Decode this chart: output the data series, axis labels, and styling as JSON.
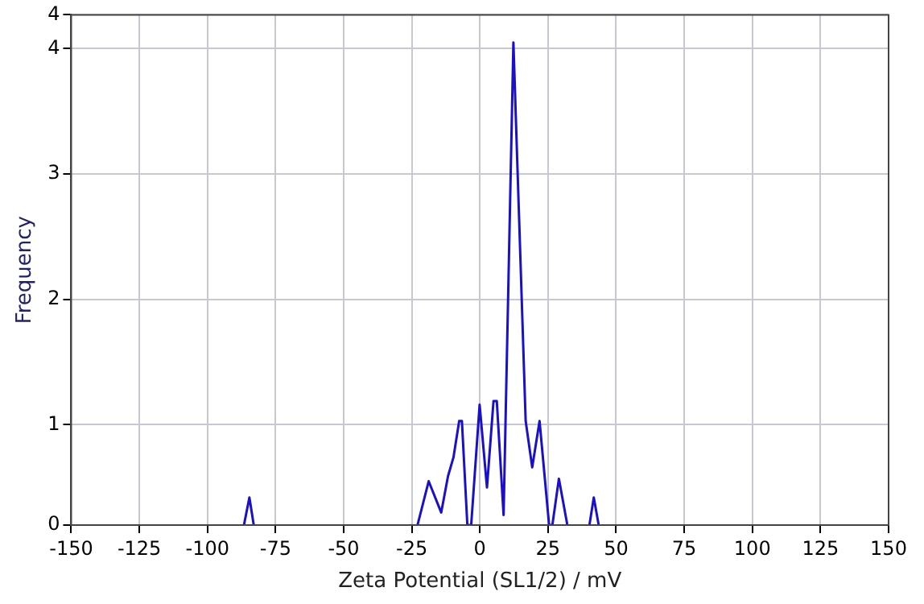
{
  "chart_data": {
    "type": "line",
    "xlabel": "Zeta Potential (SL1/2) / mV",
    "ylabel": "Frequency",
    "xlim": [
      -150,
      150
    ],
    "xticks": [
      -150,
      -125,
      -100,
      -75,
      -50,
      -25,
      0,
      25,
      50,
      75,
      100,
      125,
      150
    ],
    "ylim": [
      0.2,
      4.27
    ],
    "yticks": [
      {
        "value": 0.2,
        "label": "0"
      },
      1,
      2,
      3,
      4,
      {
        "value": 4.27,
        "label": "4"
      }
    ],
    "grid": true,
    "legend": false,
    "marker": "none",
    "line_style": "solid",
    "series": [
      {
        "color": "#1a10c8",
        "x": [
          -86.6,
          -84.6,
          -83,
          -60,
          -22.9,
          -18.8,
          -14.2,
          -11.7,
          -9.7,
          -7.6,
          -6.6,
          -4.6,
          -3.2,
          -0.1,
          2.6,
          5.0,
          6.2,
          8.7,
          12.3,
          16.8,
          19.2,
          21.9,
          25.4,
          26.6,
          29.0,
          32.1,
          36,
          40.2,
          41.8,
          43.6
        ],
        "values": [
          0.2,
          0.42,
          0.2,
          null,
          0.2,
          0.55,
          0.3,
          0.59,
          0.74,
          1.03,
          1.03,
          0.2,
          0.2,
          1.16,
          0.5,
          1.19,
          1.19,
          0.28,
          4.05,
          1.03,
          0.66,
          1.03,
          0.2,
          0.2,
          0.57,
          0.2,
          null,
          0.2,
          0.42,
          0.2
        ]
      }
    ]
  }
}
